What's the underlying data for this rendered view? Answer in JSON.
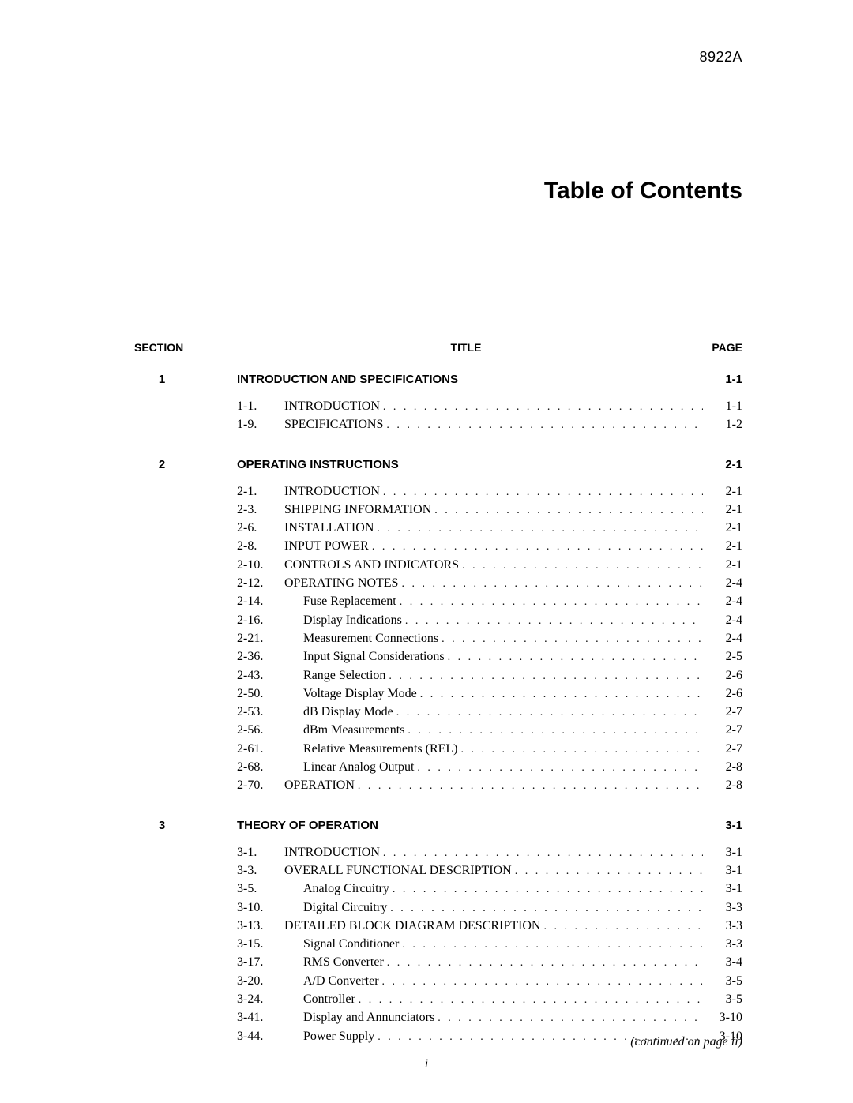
{
  "doc_number": "8922A",
  "main_title": "Table of Contents",
  "headers": {
    "section": "SECTION",
    "title": "TITLE",
    "page": "PAGE"
  },
  "sections": [
    {
      "num": "1",
      "title": "INTRODUCTION AND SPECIFICATIONS",
      "page": "1-1",
      "entries": [
        {
          "label": "1-1.",
          "title": "INTRODUCTION",
          "page": "1-1",
          "indent": 0
        },
        {
          "label": "1-9.",
          "title": "SPECIFICATIONS",
          "page": "1-2",
          "indent": 0
        }
      ]
    },
    {
      "num": "2",
      "title": "OPERATING INSTRUCTIONS",
      "page": "2-1",
      "entries": [
        {
          "label": "2-1.",
          "title": "INTRODUCTION",
          "page": "2-1",
          "indent": 0
        },
        {
          "label": "2-3.",
          "title": "SHIPPING INFORMATION",
          "page": "2-1",
          "indent": 0
        },
        {
          "label": "2-6.",
          "title": "INSTALLATION",
          "page": "2-1",
          "indent": 0
        },
        {
          "label": "2-8.",
          "title": "INPUT POWER",
          "page": "2-1",
          "indent": 0
        },
        {
          "label": "2-10.",
          "title": "CONTROLS AND INDICATORS",
          "page": "2-1",
          "indent": 0
        },
        {
          "label": "2-12.",
          "title": "OPERATING NOTES",
          "page": "2-4",
          "indent": 0
        },
        {
          "label": "2-14.",
          "title": "Fuse Replacement",
          "page": "2-4",
          "indent": 1
        },
        {
          "label": "2-16.",
          "title": "Display Indications",
          "page": "2-4",
          "indent": 1
        },
        {
          "label": "2-21.",
          "title": "Measurement Connections",
          "page": "2-4",
          "indent": 1
        },
        {
          "label": "2-36.",
          "title": "Input Signal Considerations",
          "page": "2-5",
          "indent": 1
        },
        {
          "label": "2-43.",
          "title": "Range Selection",
          "page": "2-6",
          "indent": 1
        },
        {
          "label": "2-50.",
          "title": "Voltage Display Mode",
          "page": "2-6",
          "indent": 1
        },
        {
          "label": "2-53.",
          "title": "dB Display Mode",
          "page": "2-7",
          "indent": 1
        },
        {
          "label": "2-56.",
          "title": "dBm Measurements",
          "page": "2-7",
          "indent": 1
        },
        {
          "label": "2-61.",
          "title": "Relative Measurements (REL)",
          "page": "2-7",
          "indent": 1
        },
        {
          "label": "2-68.",
          "title": "Linear Analog Output",
          "page": "2-8",
          "indent": 1
        },
        {
          "label": "2-70.",
          "title": "OPERATION",
          "page": "2-8",
          "indent": 0
        }
      ]
    },
    {
      "num": "3",
      "title": "THEORY OF OPERATION",
      "page": "3-1",
      "entries": [
        {
          "label": "3-1.",
          "title": "INTRODUCTION",
          "page": "3-1",
          "indent": 0
        },
        {
          "label": "3-3.",
          "title": "OVERALL FUNCTIONAL DESCRIPTION",
          "page": "3-1",
          "indent": 0
        },
        {
          "label": "3-5.",
          "title": "Analog Circuitry",
          "page": "3-1",
          "indent": 1
        },
        {
          "label": "3-10.",
          "title": "Digital Circuitry",
          "page": "3-3",
          "indent": 1
        },
        {
          "label": "3-13.",
          "title": "DETAILED BLOCK DIAGRAM DESCRIPTION",
          "page": "3-3",
          "indent": 0
        },
        {
          "label": "3-15.",
          "title": "Signal Conditioner",
          "page": "3-3",
          "indent": 1
        },
        {
          "label": "3-17.",
          "title": "RMS Converter",
          "page": "3-4",
          "indent": 1
        },
        {
          "label": "3-20.",
          "title": "A/D Converter",
          "page": "3-5",
          "indent": 1
        },
        {
          "label": "3-24.",
          "title": "Controller",
          "page": "3-5",
          "indent": 1
        },
        {
          "label": "3-41.",
          "title": "Display and Annunciators",
          "page": "3-10",
          "indent": 1
        },
        {
          "label": "3-44.",
          "title": "Power Supply",
          "page": "3-10",
          "indent": 1
        }
      ]
    }
  ],
  "footer_note": "(continued on page ii)",
  "page_number": "i"
}
